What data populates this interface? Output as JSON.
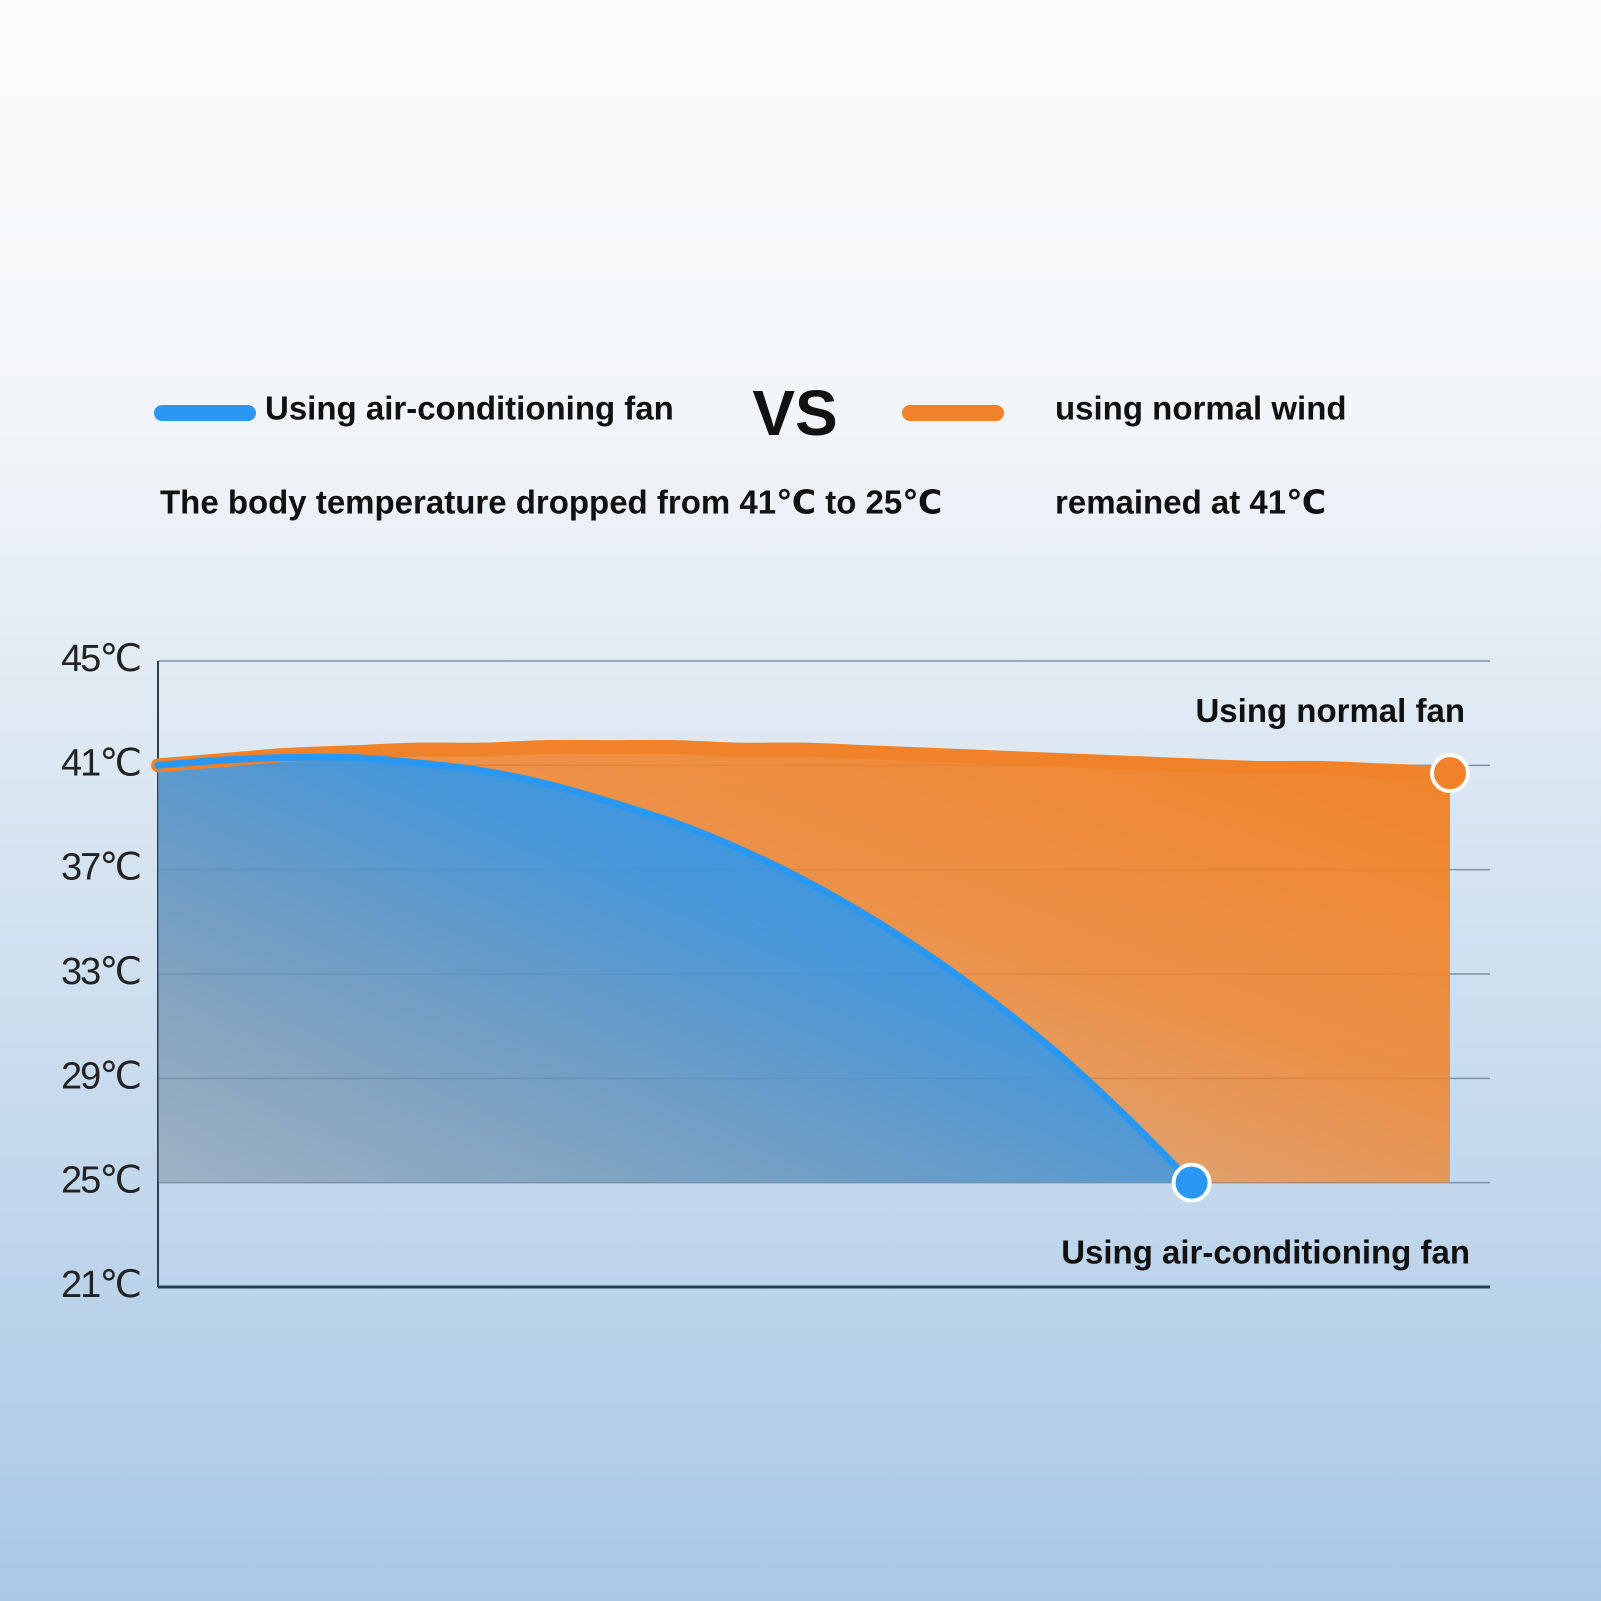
{
  "chart_data": {
    "type": "area",
    "vs_label": "VS",
    "legend_position": "top",
    "grid": true,
    "categories": [
      null,
      null,
      null,
      null,
      null,
      null,
      null,
      null,
      null,
      null,
      null,
      null,
      null,
      null,
      null,
      null,
      null,
      null,
      null,
      null,
      null
    ],
    "ylim": [
      21,
      45
    ],
    "yticks": [
      {
        "value": 21,
        "label": "21℃"
      },
      {
        "value": 25,
        "label": "25℃"
      },
      {
        "value": 29,
        "label": "29℃"
      },
      {
        "value": 33,
        "label": "33℃"
      },
      {
        "value": 37,
        "label": "37℃"
      },
      {
        "value": 41,
        "label": "41℃"
      },
      {
        "value": 45,
        "label": "45℃"
      }
    ],
    "series": [
      {
        "name": "Using air-conditioning fan",
        "color": "#2a98f2",
        "summary": "The body temperature dropped from 41℃ to 25℃",
        "end_label": "Using air-conditioning fan",
        "values": [
          41.0,
          41.2,
          41.3,
          41.3,
          41.1,
          40.8,
          40.3,
          39.6,
          38.8,
          37.8,
          36.6,
          35.2,
          33.6,
          31.8,
          29.8,
          27.5,
          25.0,
          null,
          null,
          null,
          null
        ]
      },
      {
        "name": "using normal wind",
        "color": "#f0832a",
        "summary": "remained at 41℃",
        "end_label": "Using normal fan",
        "values": [
          41.0,
          41.2,
          41.4,
          41.5,
          41.6,
          41.6,
          41.7,
          41.7,
          41.7,
          41.6,
          41.6,
          41.5,
          41.4,
          41.3,
          41.2,
          41.1,
          41.0,
          40.9,
          40.9,
          40.8,
          40.7
        ]
      }
    ]
  }
}
